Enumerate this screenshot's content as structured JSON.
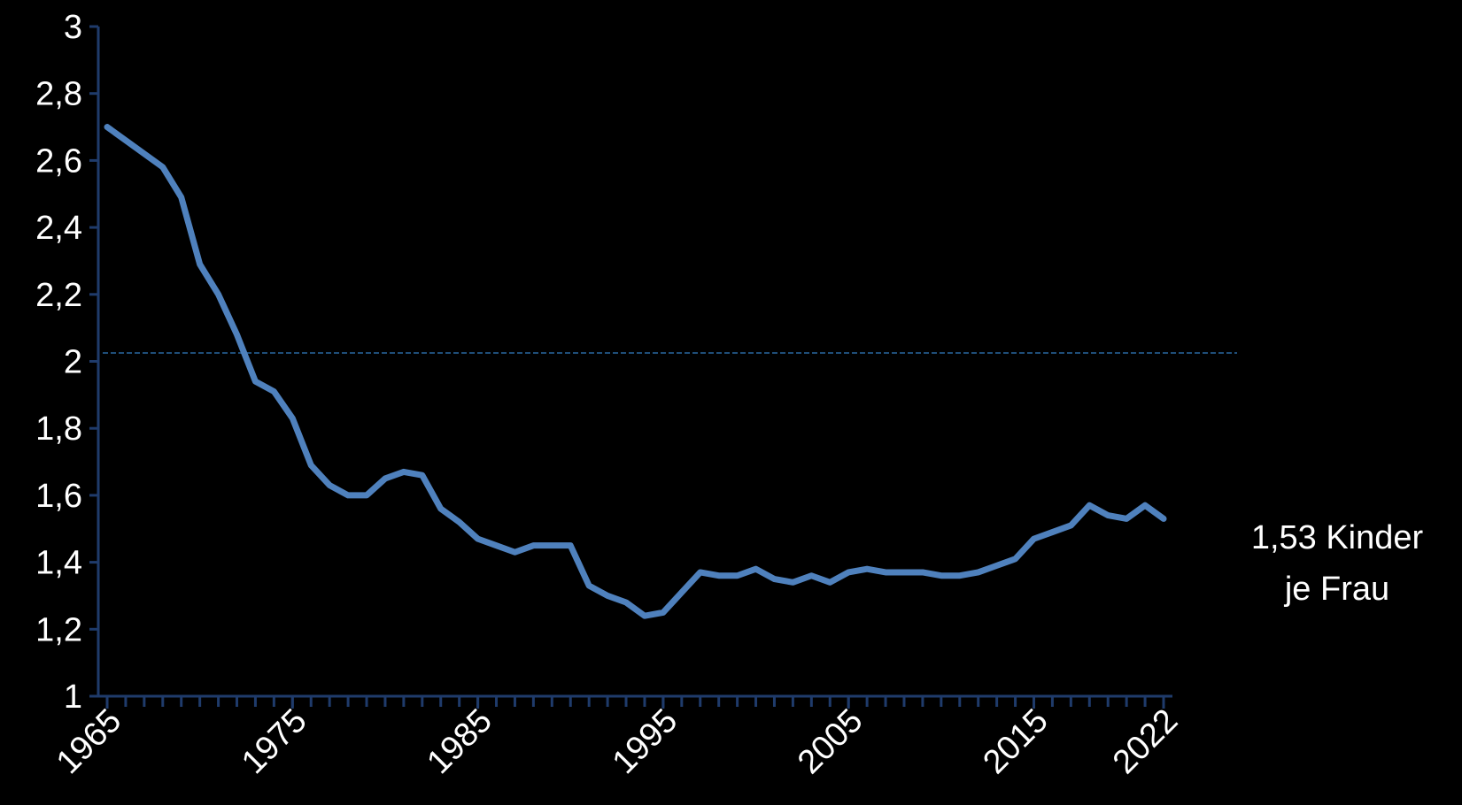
{
  "chart_data": {
    "type": "line",
    "x": [
      1965,
      1966,
      1967,
      1968,
      1969,
      1970,
      1971,
      1972,
      1973,
      1974,
      1975,
      1976,
      1977,
      1978,
      1979,
      1980,
      1981,
      1982,
      1983,
      1984,
      1985,
      1986,
      1987,
      1988,
      1989,
      1990,
      1991,
      1992,
      1993,
      1994,
      1995,
      1996,
      1997,
      1998,
      1999,
      2000,
      2001,
      2002,
      2003,
      2004,
      2005,
      2006,
      2007,
      2008,
      2009,
      2010,
      2011,
      2012,
      2013,
      2014,
      2015,
      2016,
      2017,
      2018,
      2019,
      2020,
      2021,
      2022
    ],
    "series": [
      {
        "color": "#4f81bd",
        "values": [
          2.7,
          2.66,
          2.62,
          2.58,
          2.49,
          2.29,
          2.2,
          2.08,
          1.94,
          1.91,
          1.83,
          1.69,
          1.63,
          1.6,
          1.6,
          1.65,
          1.67,
          1.66,
          1.56,
          1.52,
          1.47,
          1.45,
          1.43,
          1.45,
          1.45,
          1.45,
          1.33,
          1.3,
          1.28,
          1.24,
          1.25,
          1.31,
          1.37,
          1.36,
          1.36,
          1.38,
          1.35,
          1.34,
          1.36,
          1.34,
          1.37,
          1.38,
          1.37,
          1.37,
          1.37,
          1.36,
          1.36,
          1.37,
          1.39,
          1.41,
          1.47,
          1.49,
          1.51,
          1.57,
          1.54,
          1.53,
          1.57,
          1.53
        ]
      }
    ],
    "xlim": [
      1965,
      2022
    ],
    "xticks": [
      1965,
      1975,
      1985,
      1995,
      2005,
      2015,
      2022
    ],
    "ylim": [
      1,
      3
    ],
    "yticks": [
      1,
      {
        "value": 1.2,
        "label": "1,2"
      },
      {
        "value": 1.4,
        "label": "1,4"
      },
      {
        "value": 1.6,
        "label": "1,6"
      },
      {
        "value": 1.8,
        "label": "1,8"
      },
      2,
      {
        "value": 2.2,
        "label": "2,2"
      },
      {
        "value": 2.4,
        "label": "2,4"
      },
      {
        "value": 2.6,
        "label": "2,6"
      },
      {
        "value": 2.8,
        "label": "2,8"
      },
      3
    ],
    "reference_line": {
      "value": 2.025,
      "color": "#1f4e79"
    },
    "axis_color": "#1f3b6b",
    "annotation": [
      "1,53 Kinder",
      "je Frau"
    ]
  }
}
